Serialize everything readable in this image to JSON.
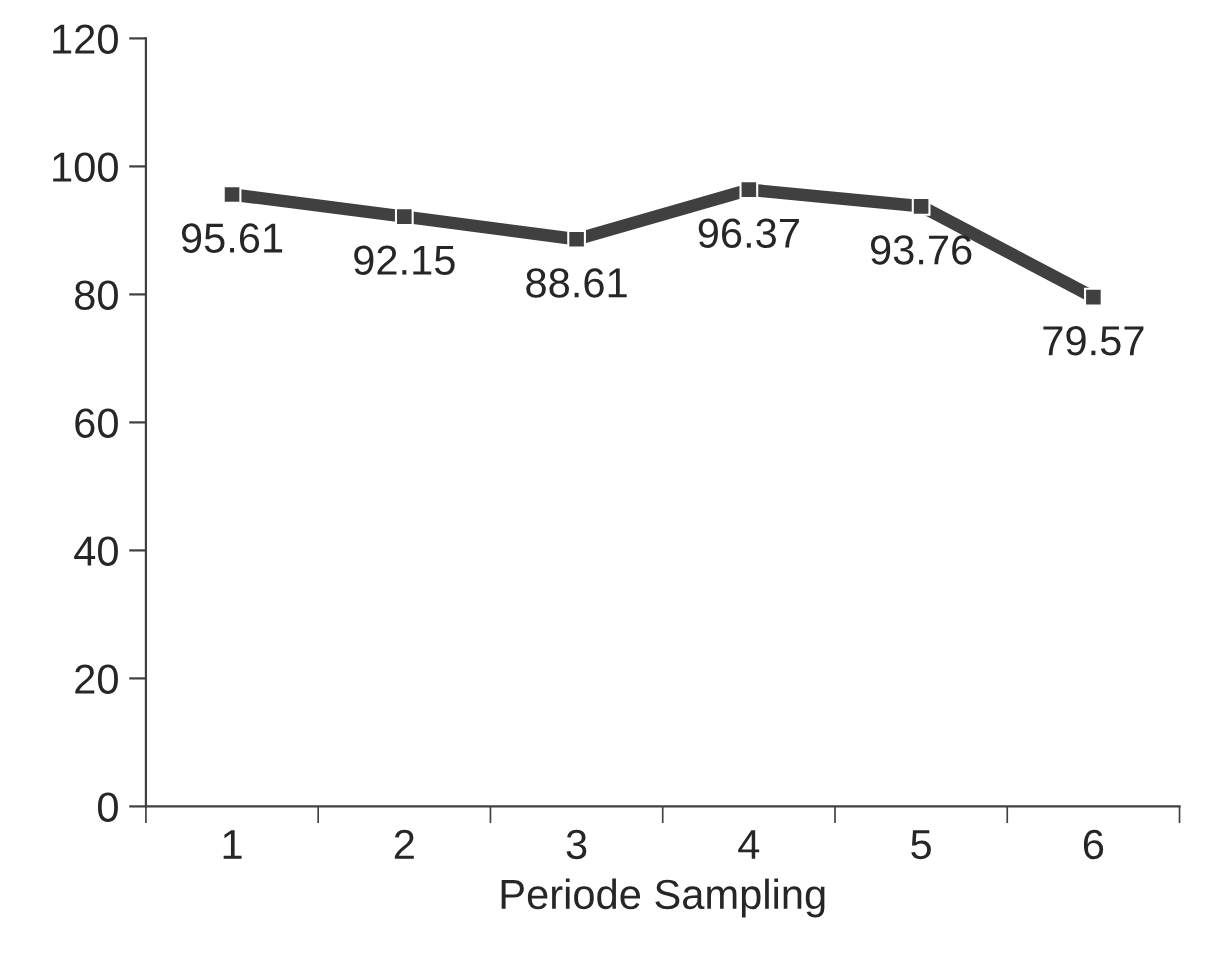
{
  "chart_data": {
    "type": "line",
    "xlabel": "Periode Sampling",
    "categories": [
      "1",
      "2",
      "3",
      "4",
      "5",
      "6"
    ],
    "series": [
      {
        "color": "#404040",
        "values": [
          95.61,
          92.15,
          88.61,
          96.37,
          93.76,
          79.57
        ]
      }
    ],
    "ylim": [
      0,
      120
    ],
    "yticks": [
      0,
      20,
      40,
      60,
      80,
      100,
      120
    ],
    "data_labels": true,
    "grid": false,
    "legend": false,
    "marker": "square",
    "line_style": "solid"
  }
}
